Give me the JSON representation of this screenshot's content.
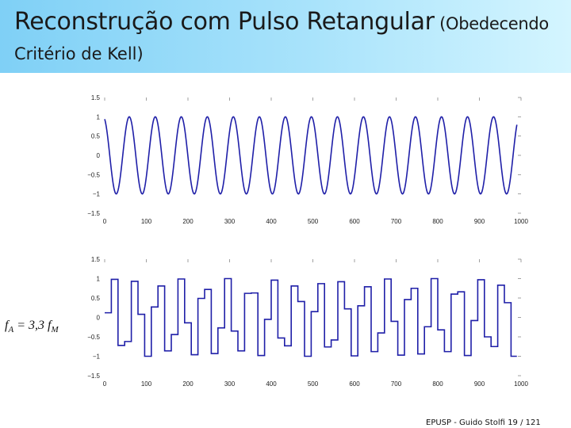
{
  "title": {
    "line1_main": "Reconstrução com Pulso Retangular",
    "line1_small": " (Obedecendo",
    "line2": "Critério de Kell)"
  },
  "formula": {
    "f1": "f",
    "sub1": "A",
    "middle": " = 3,3 ",
    "f2": "f",
    "sub2": "M"
  },
  "footer": {
    "source": "EPUSP - Guido Stolfi",
    "page": "19 / 121"
  },
  "chart_data": [
    {
      "type": "line",
      "title": "",
      "xlabel": "",
      "ylabel": "",
      "xlim": [
        0,
        1000
      ],
      "ylim": [
        -1.5,
        1.5
      ],
      "x_ticks": [
        "0",
        "100",
        "200",
        "300",
        "400",
        "500",
        "600",
        "700",
        "800",
        "900",
        "1000"
      ],
      "y_ticks": [
        "1.5",
        "1",
        "0.5",
        "0",
        "−0.5",
        "−1",
        "−1.5"
      ],
      "series": [
        {
          "signal": "sine",
          "amplitude": 1,
          "cycles": 16,
          "x_end": 990,
          "color": "#1f1fa8"
        }
      ]
    },
    {
      "type": "line",
      "title": "",
      "xlabel": "",
      "ylabel": "",
      "xlim": [
        0,
        1000
      ],
      "ylim": [
        -1.5,
        1.5
      ],
      "x_ticks": [
        "0",
        "100",
        "200",
        "300",
        "400",
        "500",
        "600",
        "700",
        "800",
        "900",
        "1000"
      ],
      "y_ticks": [
        "1.5",
        "1",
        "0.5",
        "0",
        "−0.5",
        "−1",
        "−1.5"
      ],
      "series": [
        {
          "signal": "sample-and-hold",
          "x_end": 990,
          "color": "#1f1fa8",
          "steps": [
            {
              "x": 0,
              "y": 0.12
            },
            {
              "x": 16,
              "y": 0.98
            },
            {
              "x": 32,
              "y": -0.72
            },
            {
              "x": 48,
              "y": -0.62
            },
            {
              "x": 64,
              "y": 0.93
            },
            {
              "x": 80,
              "y": 0.08
            },
            {
              "x": 96,
              "y": -1.0
            },
            {
              "x": 112,
              "y": 0.27
            },
            {
              "x": 128,
              "y": 0.81
            },
            {
              "x": 144,
              "y": -0.86
            },
            {
              "x": 160,
              "y": -0.44
            },
            {
              "x": 176,
              "y": 0.99
            },
            {
              "x": 192,
              "y": -0.14
            },
            {
              "x": 208,
              "y": -0.96
            },
            {
              "x": 224,
              "y": 0.49
            },
            {
              "x": 240,
              "y": 0.72
            },
            {
              "x": 256,
              "y": -0.93
            },
            {
              "x": 272,
              "y": -0.27
            },
            {
              "x": 288,
              "y": 1.0
            },
            {
              "x": 304,
              "y": -0.35
            },
            {
              "x": 320,
              "y": -0.86
            },
            {
              "x": 336,
              "y": 0.62
            },
            {
              "x": 352,
              "y": 0.63
            },
            {
              "x": 368,
              "y": -0.98
            },
            {
              "x": 384,
              "y": -0.05
            },
            {
              "x": 400,
              "y": 0.96
            },
            {
              "x": 416,
              "y": -0.53
            },
            {
              "x": 432,
              "y": -0.73
            },
            {
              "x": 448,
              "y": 0.81
            },
            {
              "x": 464,
              "y": 0.41
            },
            {
              "x": 480,
              "y": -1.0
            },
            {
              "x": 496,
              "y": 0.15
            },
            {
              "x": 512,
              "y": 0.87
            },
            {
              "x": 528,
              "y": -0.76
            },
            {
              "x": 544,
              "y": -0.58
            },
            {
              "x": 560,
              "y": 0.92
            },
            {
              "x": 576,
              "y": 0.22
            },
            {
              "x": 592,
              "y": -0.99
            },
            {
              "x": 608,
              "y": 0.3
            },
            {
              "x": 624,
              "y": 0.79
            },
            {
              "x": 640,
              "y": -0.88
            },
            {
              "x": 656,
              "y": -0.4
            },
            {
              "x": 672,
              "y": 0.99
            },
            {
              "x": 688,
              "y": -0.1
            },
            {
              "x": 704,
              "y": -0.97
            },
            {
              "x": 720,
              "y": 0.46
            },
            {
              "x": 736,
              "y": 0.75
            },
            {
              "x": 752,
              "y": -0.94
            },
            {
              "x": 768,
              "y": -0.24
            },
            {
              "x": 784,
              "y": 1.0
            },
            {
              "x": 800,
              "y": -0.32
            },
            {
              "x": 816,
              "y": -0.88
            },
            {
              "x": 832,
              "y": 0.6
            },
            {
              "x": 848,
              "y": 0.66
            },
            {
              "x": 864,
              "y": -0.98
            },
            {
              "x": 880,
              "y": -0.08
            },
            {
              "x": 896,
              "y": 0.97
            },
            {
              "x": 912,
              "y": -0.5
            },
            {
              "x": 928,
              "y": -0.75
            },
            {
              "x": 944,
              "y": 0.83
            },
            {
              "x": 960,
              "y": 0.38
            },
            {
              "x": 976,
              "y": -1.0
            }
          ]
        }
      ]
    }
  ]
}
